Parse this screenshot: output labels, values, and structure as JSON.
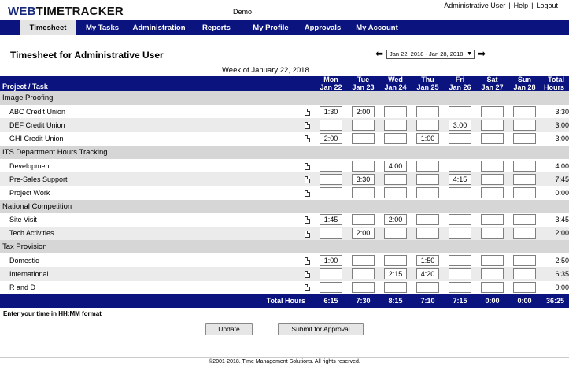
{
  "app": {
    "logo_web": "WEB",
    "logo_rest": "TIMETRACKER",
    "organization": "Demo",
    "user_link": "Administrative User",
    "help_link": "Help",
    "logout_link": "Logout",
    "separator": "|"
  },
  "nav": {
    "items": [
      "Timesheet",
      "My Tasks",
      "Administration",
      "Reports",
      "My Profile",
      "Approvals",
      "My Account"
    ],
    "active": "Timesheet"
  },
  "timesheet": {
    "heading": "Timesheet for Administrative User",
    "week_select": "Jan 22, 2018 - Jan 28, 2018",
    "prev_arrow": "⬅",
    "next_arrow": "➡",
    "week_of": "Week of January 22, 2018",
    "header_tasks": "Project / Task",
    "days": [
      {
        "dow": "Mon",
        "date": "Jan 22"
      },
      {
        "dow": "Tue",
        "date": "Jan 23"
      },
      {
        "dow": "Wed",
        "date": "Jan 24"
      },
      {
        "dow": "Thu",
        "date": "Jan 25"
      },
      {
        "dow": "Fri",
        "date": "Jan 26"
      },
      {
        "dow": "Sat",
        "date": "Jan 27"
      },
      {
        "dow": "Sun",
        "date": "Jan 28"
      }
    ],
    "total_header": [
      "Total",
      "Hours"
    ],
    "groups": [
      {
        "name": "Image Proofing",
        "tasks": [
          {
            "name": "ABC Credit Union",
            "hours": [
              "1:30",
              "2:00",
              "",
              "",
              "",
              "",
              ""
            ],
            "total": "3:30"
          },
          {
            "name": "DEF Credit Union",
            "hours": [
              "",
              "",
              "",
              "",
              "3:00",
              "",
              ""
            ],
            "total": "3:00"
          },
          {
            "name": "GHI Credit Union",
            "hours": [
              "2:00",
              "",
              "",
              "1:00",
              "",
              "",
              ""
            ],
            "total": "3:00"
          }
        ]
      },
      {
        "name": "ITS Department Hours Tracking",
        "tasks": [
          {
            "name": "Development",
            "hours": [
              "",
              "",
              "4:00",
              "",
              "",
              "",
              ""
            ],
            "total": "4:00"
          },
          {
            "name": "Pre-Sales Support",
            "hours": [
              "",
              "3:30",
              "",
              "",
              "4:15",
              "",
              ""
            ],
            "total": "7:45"
          },
          {
            "name": "Project Work",
            "hours": [
              "",
              "",
              "",
              "",
              "",
              "",
              ""
            ],
            "total": "0:00"
          }
        ]
      },
      {
        "name": "National Competition",
        "tasks": [
          {
            "name": "Site Visit",
            "hours": [
              "1:45",
              "",
              "2:00",
              "",
              "",
              "",
              ""
            ],
            "total": "3:45"
          },
          {
            "name": "Tech Activities",
            "hours": [
              "",
              "2:00",
              "",
              "",
              "",
              "",
              ""
            ],
            "total": "2:00"
          }
        ]
      },
      {
        "name": "Tax Provision",
        "tasks": [
          {
            "name": "Domestic",
            "hours": [
              "1:00",
              "",
              "",
              "1:50",
              "",
              "",
              ""
            ],
            "total": "2:50"
          },
          {
            "name": "International",
            "hours": [
              "",
              "",
              "2:15",
              "4:20",
              "",
              "",
              ""
            ],
            "total": "6:35"
          },
          {
            "name": "R and D",
            "hours": [
              "",
              "",
              "",
              "",
              "",
              "",
              ""
            ],
            "total": "0:00"
          }
        ]
      }
    ],
    "totals_label": "Total Hours",
    "day_totals": [
      "6:15",
      "7:30",
      "8:15",
      "7:10",
      "7:15",
      "0:00",
      "0:00"
    ],
    "grand_total": "36:25",
    "hint": "Enter your time in HH:MM format",
    "update_button": "Update",
    "submit_button": "Submit for Approval"
  },
  "footer": {
    "copyright": "©2001-2018. Time Management Solutions. All rights reserved."
  }
}
